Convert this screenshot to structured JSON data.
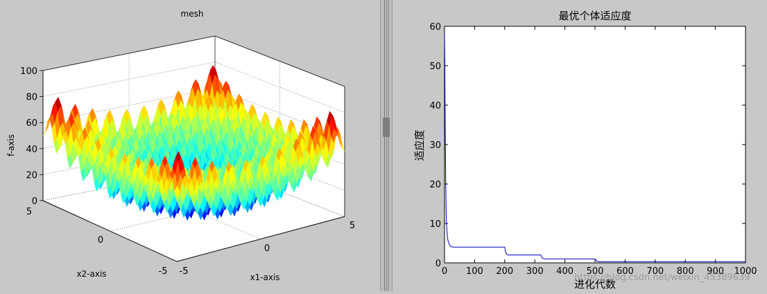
{
  "chart_data": [
    {
      "type": "surface",
      "title": "mesh",
      "xlabel": "x1-axis",
      "ylabel": "x2-axis",
      "zlabel": "f-axis",
      "xlim": [
        -5,
        5
      ],
      "ylim": [
        -5,
        5
      ],
      "zlim": [
        0,
        100
      ],
      "x_ticks": [
        "-5",
        "0",
        "5"
      ],
      "y_ticks": [
        "-5",
        "0",
        "5"
      ],
      "z_ticks": [
        "0",
        "20",
        "40",
        "60",
        "80",
        "100"
      ],
      "grid": true,
      "colormap": "jet"
    },
    {
      "type": "line",
      "title": "最优个体适应度",
      "xlabel": "进化代数",
      "ylabel": "适应度",
      "xlim": [
        0,
        1000
      ],
      "ylim": [
        0,
        60
      ],
      "x_ticks": [
        "0",
        "100",
        "200",
        "300",
        "400",
        "500",
        "600",
        "700",
        "800",
        "900",
        "1000"
      ],
      "y_ticks": [
        "0",
        "10",
        "20",
        "30",
        "40",
        "50",
        "60"
      ],
      "grid": false,
      "line_color": "#0000cc",
      "series": [
        {
          "x": [
            0,
            1,
            2,
            3,
            4,
            5,
            6,
            8,
            10,
            12,
            15,
            18,
            22,
            30,
            40,
            200,
            202,
            205,
            210,
            320,
            322,
            325,
            330,
            500,
            505,
            510,
            1000
          ],
          "y": [
            58,
            52,
            36,
            29,
            21,
            15,
            11,
            8,
            6.5,
            5.5,
            4.8,
            4.4,
            4.1,
            4.0,
            4.0,
            4.0,
            3.0,
            2.3,
            2.0,
            2.0,
            1.6,
            1.2,
            1.0,
            1.0,
            0.5,
            0.3,
            0.3
          ]
        }
      ]
    }
  ],
  "watermark": "https://blog.csdn.net/weixin_45389639"
}
